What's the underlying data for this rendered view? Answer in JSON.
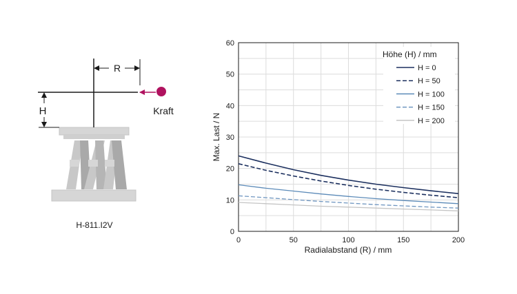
{
  "figure": {
    "diagram": {
      "force_label": "Kraft",
      "height_label": "H",
      "radius_label": "R",
      "model_label": "H-811.I2V",
      "colors": {
        "platform": "#d6d6d6",
        "strut": "#c8c8c8",
        "strut_dark": "#a9a9a9",
        "force_dot": "#b0125f",
        "force_arrow": "#b0125f"
      }
    }
  },
  "chart_data": {
    "type": "line",
    "xlabel": "Radialabstand (R) / mm",
    "ylabel": "Max. Last / N",
    "xlim": [
      0,
      200
    ],
    "ylim": [
      0,
      60
    ],
    "xticks": [
      0,
      50,
      100,
      150,
      200
    ],
    "yticks": [
      0,
      10,
      20,
      30,
      40,
      50,
      60
    ],
    "grid": true,
    "legend_title": "Höhe (H) / mm",
    "legend_position": "top-right",
    "x": [
      0,
      25,
      50,
      75,
      100,
      125,
      150,
      175,
      200
    ],
    "series": [
      {
        "name": "H = 0",
        "color": "#1b2f5e",
        "dash": "solid",
        "values": [
          24.0,
          21.7,
          19.6,
          17.8,
          16.3,
          15.0,
          13.9,
          12.9,
          12.0
        ]
      },
      {
        "name": "H = 50",
        "color": "#1b2f5e",
        "dash": "dashed",
        "values": [
          21.5,
          19.4,
          17.6,
          16.0,
          14.6,
          13.4,
          12.4,
          11.5,
          10.7
        ]
      },
      {
        "name": "H = 100",
        "color": "#5b8ab8",
        "dash": "solid",
        "values": [
          14.8,
          13.7,
          12.8,
          11.9,
          11.1,
          10.4,
          9.8,
          9.3,
          8.8
        ]
      },
      {
        "name": "H = 150",
        "color": "#6f96c0",
        "dash": "dashed",
        "values": [
          11.3,
          10.7,
          10.1,
          9.5,
          9.0,
          8.5,
          8.1,
          7.7,
          7.4
        ]
      },
      {
        "name": "H = 200",
        "color": "#c4c4c4",
        "dash": "solid",
        "values": [
          9.2,
          8.8,
          8.4,
          8.0,
          7.7,
          7.4,
          7.1,
          6.8,
          6.5
        ]
      }
    ]
  }
}
